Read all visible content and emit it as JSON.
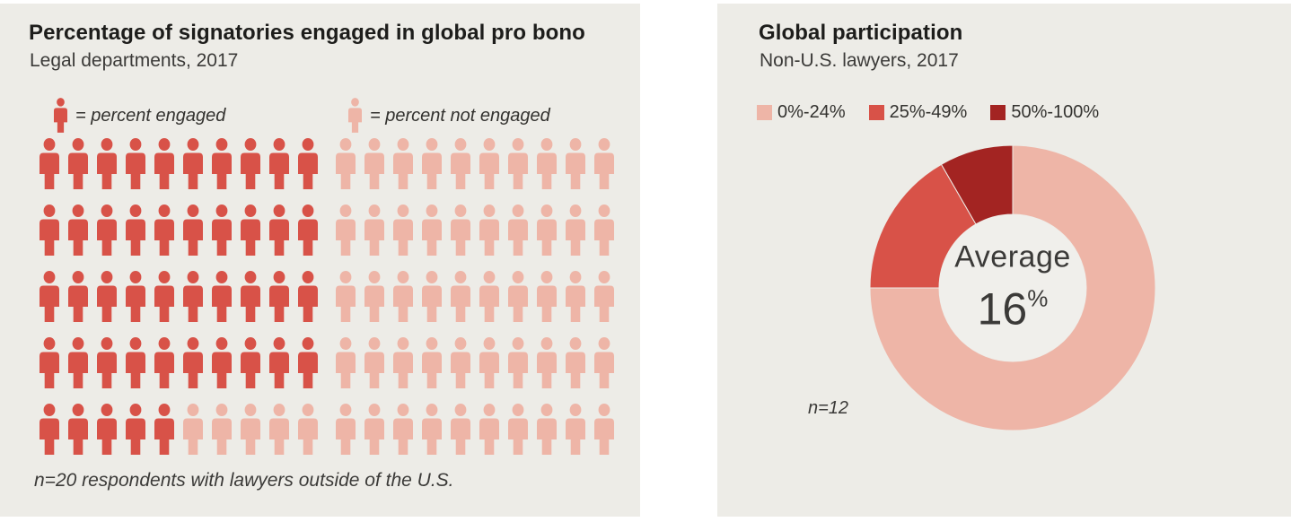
{
  "page": {
    "background": "#ffffff",
    "panel_background": "#edece7"
  },
  "colors": {
    "engaged_red": "#d85248",
    "not_engaged_pink": "#eeb5a7",
    "dark_red": "#a32422",
    "donut_hole": "#f0efeb",
    "title_text": "#1d1d1b",
    "body_text": "#3b3a38"
  },
  "chart_data": [
    {
      "type": "pictogram",
      "title": "Percentage of signatories engaged in global pro bono",
      "subtitle": "Legal departments, 2017",
      "legend": [
        {
          "label": "= percent engaged",
          "color": "#d85248"
        },
        {
          "label": "= percent not engaged",
          "color": "#eeb5a7"
        }
      ],
      "icon": "person-icon",
      "total_icons": 100,
      "percent_engaged": 45,
      "percent_not_engaged": 55,
      "columns_per_grid": 10,
      "rows_per_grid": 5,
      "grids": [
        {
          "name": "left-grid",
          "total": 50,
          "engaged": 45
        },
        {
          "name": "right-grid",
          "total": 50,
          "engaged": 0
        }
      ],
      "note": "n=20 respondents with lawyers outside of the U.S."
    },
    {
      "type": "donut",
      "title": "Global participation",
      "subtitle": "Non-U.S. lawyers, 2017",
      "n": 12,
      "segments": [
        {
          "label": "0%-24%",
          "color": "#eeb5a7",
          "value": 9,
          "percent_of_ring": 75.0
        },
        {
          "label": "25%-49%",
          "color": "#d85248",
          "value": 2,
          "percent_of_ring": 16.7
        },
        {
          "label": "50%-100%",
          "color": "#a32422",
          "value": 1,
          "percent_of_ring": 8.3
        }
      ],
      "start_angle_deg": 0,
      "direction": "clockwise",
      "legend_position": "top",
      "center_label": "Average",
      "center_value": "16",
      "center_unit": "%",
      "note": "n=12"
    }
  ]
}
